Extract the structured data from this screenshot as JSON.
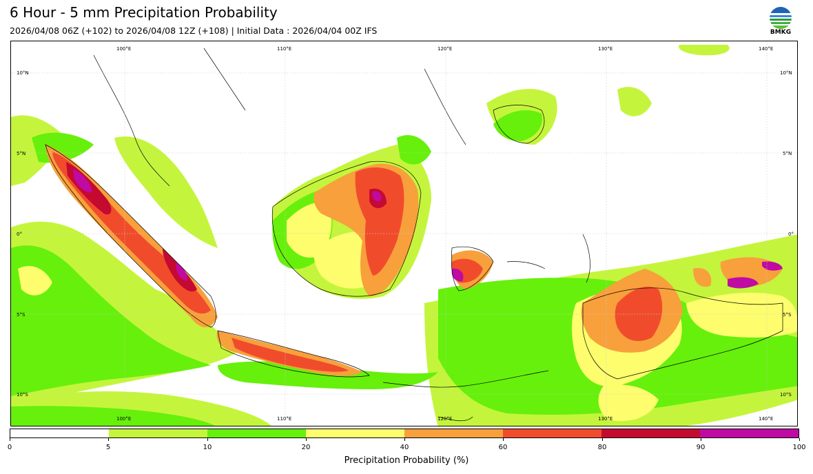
{
  "header": {
    "title": "6 Hour - 5 mm Precipitation Probability",
    "subtitle": "2026/04/08 06Z (+102) to 2026/04/08 12Z (+108) | Initial Data : 2026/04/04 00Z IFS",
    "logo_text": "BMKG"
  },
  "map": {
    "region": "Indonesia",
    "lon_labels_top": [
      "100°E",
      "110°E",
      "120°E",
      "130°E",
      "140°E"
    ],
    "lon_labels_bottom": [
      "100°E",
      "110°E",
      "120°E",
      "130°E",
      "140°E"
    ],
    "lat_labels_left": [
      "10°N",
      "5°N",
      "0°",
      "5°S",
      "10°S"
    ],
    "lat_labels_right": [
      "10°N",
      "5°N",
      "0°",
      "5°S",
      "10°S"
    ]
  },
  "colorbar": {
    "title": "Precipitation Probability (%)",
    "bounds": [
      "0",
      "5",
      "10",
      "20",
      "40",
      "60",
      "80",
      "90",
      "100"
    ],
    "colors": [
      "#ffffff",
      "#c4f53c",
      "#66f00b",
      "#fdfd6e",
      "#f8a03c",
      "#f04c2c",
      "#c40a30",
      "#c00aa4"
    ]
  }
}
